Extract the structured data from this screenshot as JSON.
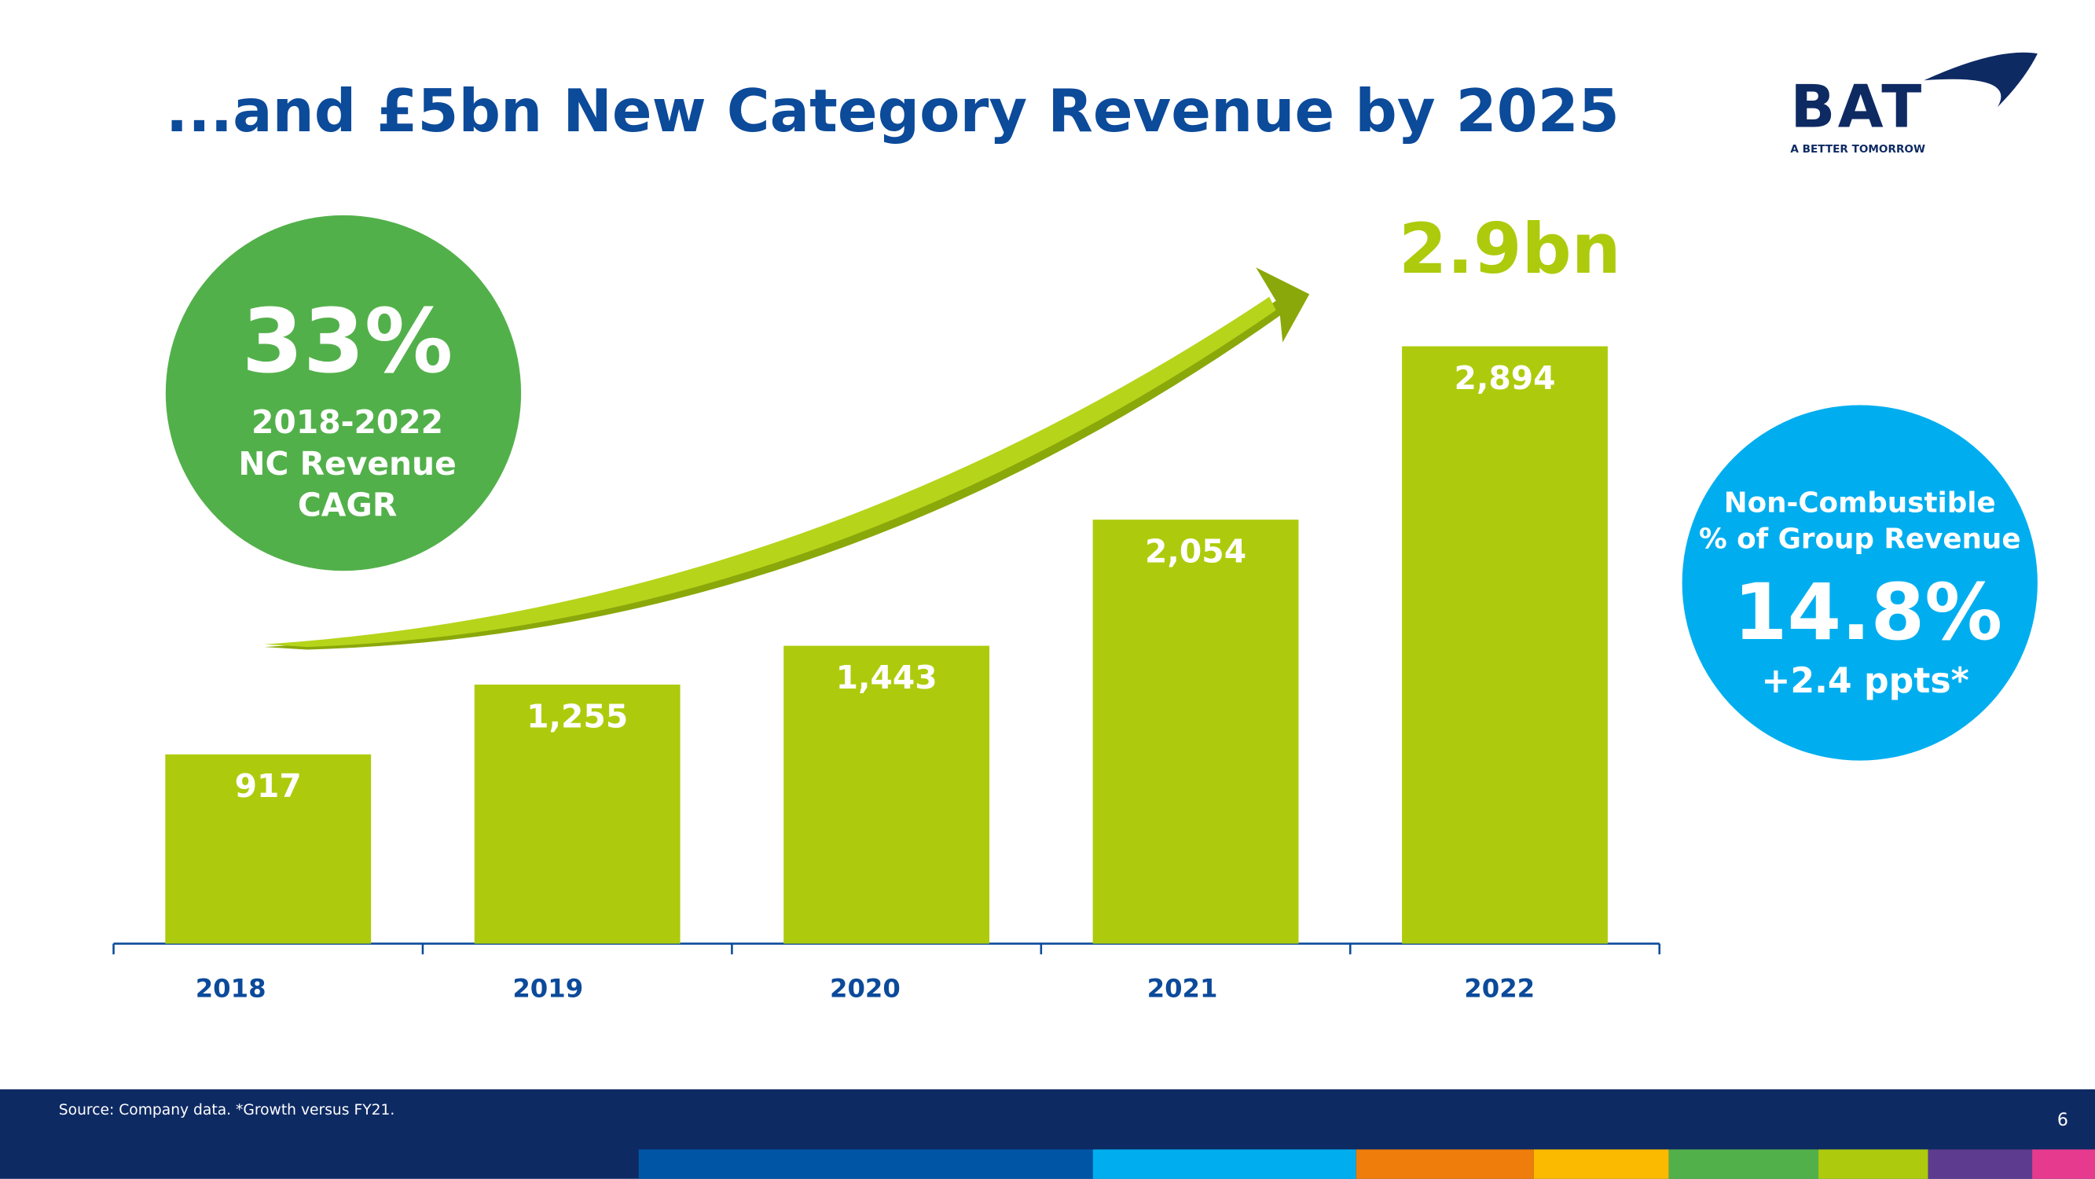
{
  "header": {
    "title": "...and £5bn New Category Revenue by 2025",
    "logo": "BAT",
    "tagline": "A BETTER TOMORROW"
  },
  "chart_data": {
    "type": "bar",
    "headline": "2.9bn",
    "categories": [
      "2018",
      "2019",
      "2020",
      "2021",
      "2022"
    ],
    "values": [
      917,
      1255,
      1443,
      2054,
      2894
    ],
    "value_labels": [
      "917",
      "1,255",
      "1,443",
      "2,054",
      "2,894"
    ],
    "color": "#adcb0c"
  },
  "callouts": {
    "cagr": {
      "value": "33%",
      "lines": [
        "2018-2022",
        "NC Revenue",
        "CAGR"
      ]
    },
    "share": {
      "lines": [
        "Non-Combustible",
        "% of Group Revenue"
      ],
      "value": "14.8%",
      "change": "+2.4 ppts*"
    }
  },
  "footer": {
    "source": "Source: Company data. *Growth versus FY21.",
    "page": "6"
  }
}
